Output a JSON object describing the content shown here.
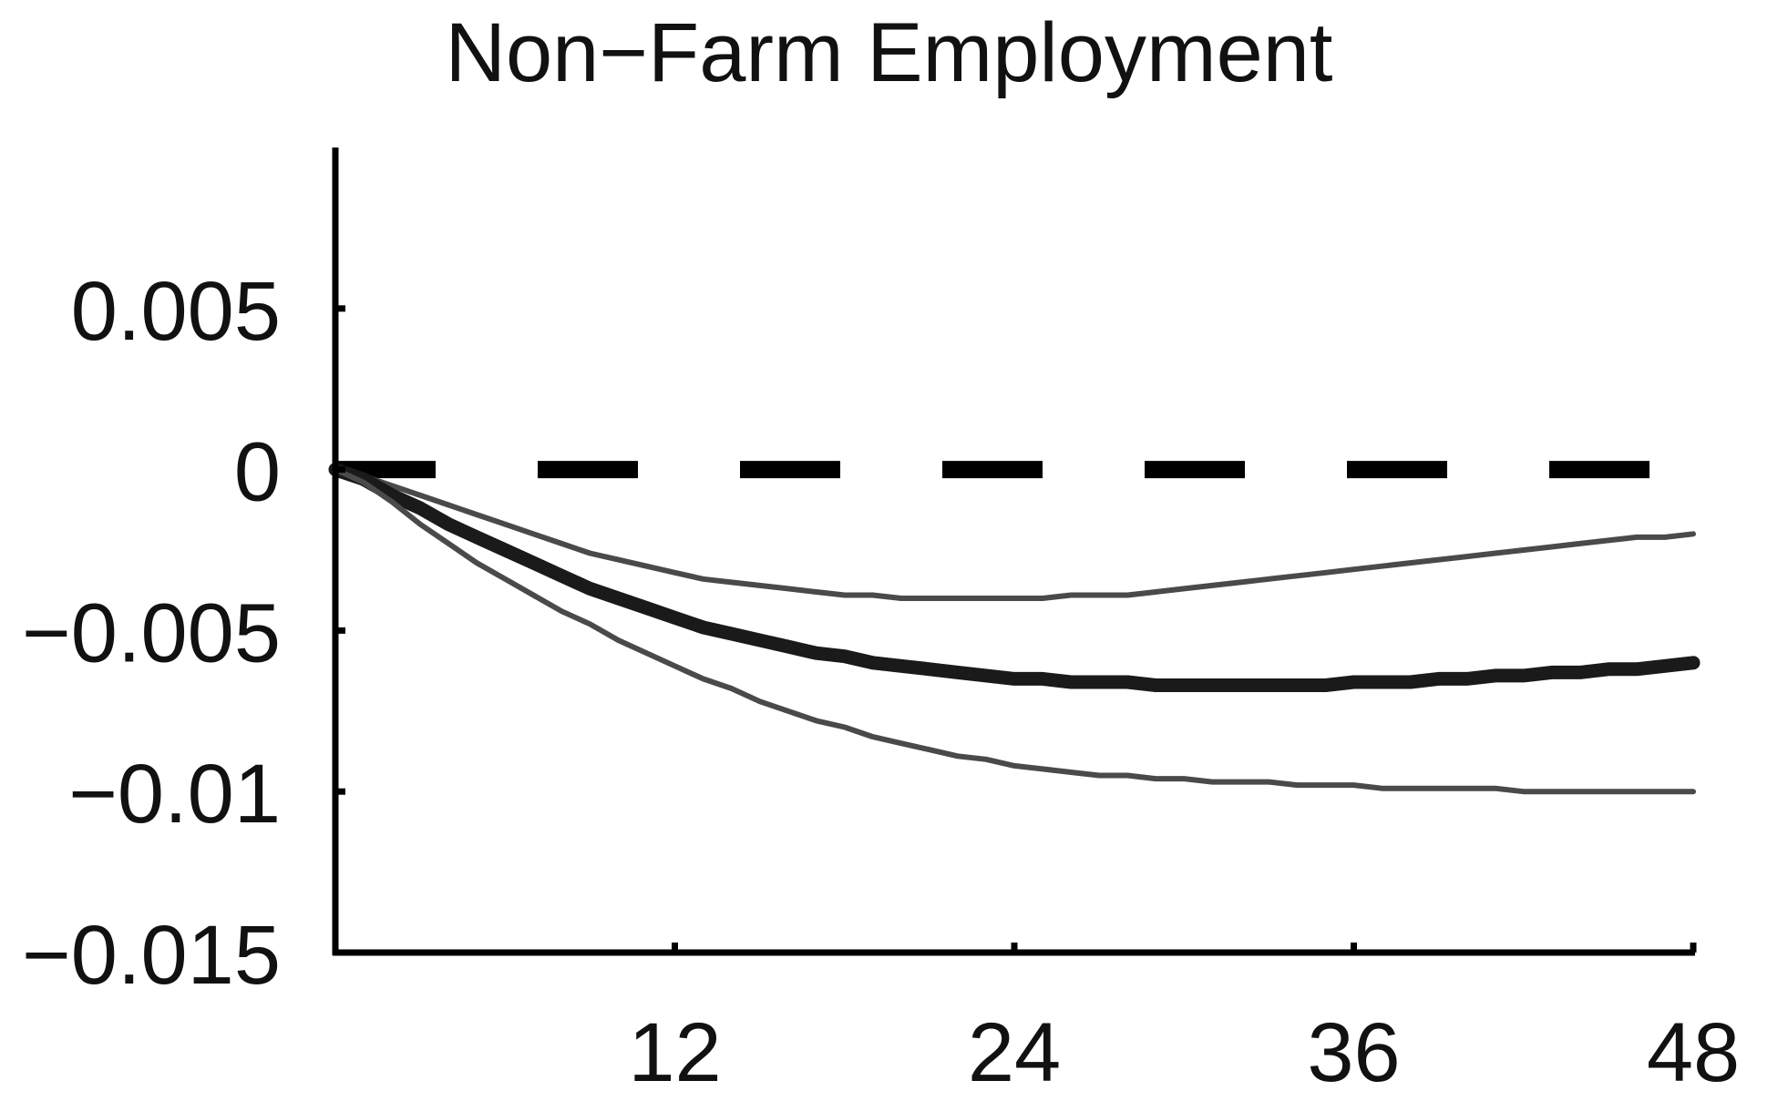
{
  "chart_data": {
    "type": "line",
    "title": "Non−Farm Employment",
    "xlabel": "",
    "ylabel": "",
    "xlim": [
      0,
      48
    ],
    "ylim": [
      -0.015,
      0.01
    ],
    "x_ticks": [
      12,
      24,
      36,
      48
    ],
    "x_tick_labels": [
      "12",
      "24",
      "36",
      "48"
    ],
    "y_ticks": [
      0.005,
      0,
      -0.005,
      -0.01,
      -0.015
    ],
    "y_tick_labels": [
      "0.005",
      "0",
      "−0.005",
      "−0.01",
      "−0.015"
    ],
    "grid": false,
    "legend": "none",
    "zero_line": {
      "style": "dashed",
      "value": 0,
      "color": "#000000"
    },
    "series": [
      {
        "role": "upper-band",
        "color": "#4a4a4a",
        "x": [
          0,
          1,
          2,
          3,
          4,
          5,
          6,
          7,
          8,
          9,
          10,
          11,
          12,
          13,
          14,
          15,
          16,
          17,
          18,
          19,
          20,
          21,
          22,
          23,
          24,
          25,
          26,
          27,
          28,
          29,
          30,
          31,
          32,
          33,
          34,
          35,
          36,
          37,
          38,
          39,
          40,
          41,
          42,
          43,
          44,
          45,
          46,
          47,
          48
        ],
        "values": [
          0,
          -0.0002,
          -0.0005,
          -0.0008,
          -0.0011,
          -0.0014,
          -0.0017,
          -0.002,
          -0.0023,
          -0.0026,
          -0.0028,
          -0.003,
          -0.0032,
          -0.0034,
          -0.0035,
          -0.0036,
          -0.0037,
          -0.0038,
          -0.0039,
          -0.0039,
          -0.004,
          -0.004,
          -0.004,
          -0.004,
          -0.004,
          -0.004,
          -0.0039,
          -0.0039,
          -0.0039,
          -0.0038,
          -0.0037,
          -0.0036,
          -0.0035,
          -0.0034,
          -0.0033,
          -0.0032,
          -0.0031,
          -0.003,
          -0.0029,
          -0.0028,
          -0.0027,
          -0.0026,
          -0.0025,
          -0.0024,
          -0.0023,
          -0.0022,
          -0.0021,
          -0.0021,
          -0.002
        ]
      },
      {
        "role": "median",
        "color": "#1a1a1a",
        "x": [
          0,
          1,
          2,
          3,
          4,
          5,
          6,
          7,
          8,
          9,
          10,
          11,
          12,
          13,
          14,
          15,
          16,
          17,
          18,
          19,
          20,
          21,
          22,
          23,
          24,
          25,
          26,
          27,
          28,
          29,
          30,
          31,
          32,
          33,
          34,
          35,
          36,
          37,
          38,
          39,
          40,
          41,
          42,
          43,
          44,
          45,
          46,
          47,
          48
        ],
        "values": [
          0,
          -0.0003,
          -0.0008,
          -0.0012,
          -0.0017,
          -0.0021,
          -0.0025,
          -0.0029,
          -0.0033,
          -0.0037,
          -0.004,
          -0.0043,
          -0.0046,
          -0.0049,
          -0.0051,
          -0.0053,
          -0.0055,
          -0.0057,
          -0.0058,
          -0.006,
          -0.0061,
          -0.0062,
          -0.0063,
          -0.0064,
          -0.0065,
          -0.0065,
          -0.0066,
          -0.0066,
          -0.0066,
          -0.0067,
          -0.0067,
          -0.0067,
          -0.0067,
          -0.0067,
          -0.0067,
          -0.0067,
          -0.0066,
          -0.0066,
          -0.0066,
          -0.0065,
          -0.0065,
          -0.0064,
          -0.0064,
          -0.0063,
          -0.0063,
          -0.0062,
          -0.0062,
          -0.0061,
          -0.006
        ]
      },
      {
        "role": "lower-band",
        "color": "#4a4a4a",
        "x": [
          0,
          1,
          2,
          3,
          4,
          5,
          6,
          7,
          8,
          9,
          10,
          11,
          12,
          13,
          14,
          15,
          16,
          17,
          18,
          19,
          20,
          21,
          22,
          23,
          24,
          25,
          26,
          27,
          28,
          29,
          30,
          31,
          32,
          33,
          34,
          35,
          36,
          37,
          38,
          39,
          40,
          41,
          42,
          43,
          44,
          45,
          46,
          47,
          48
        ],
        "values": [
          0,
          -0.0004,
          -0.001,
          -0.0017,
          -0.0023,
          -0.0029,
          -0.0034,
          -0.0039,
          -0.0044,
          -0.0048,
          -0.0053,
          -0.0057,
          -0.0061,
          -0.0065,
          -0.0068,
          -0.0072,
          -0.0075,
          -0.0078,
          -0.008,
          -0.0083,
          -0.0085,
          -0.0087,
          -0.0089,
          -0.009,
          -0.0092,
          -0.0093,
          -0.0094,
          -0.0095,
          -0.0095,
          -0.0096,
          -0.0096,
          -0.0097,
          -0.0097,
          -0.0097,
          -0.0098,
          -0.0098,
          -0.0098,
          -0.0099,
          -0.0099,
          -0.0099,
          -0.0099,
          -0.0099,
          -0.01,
          -0.01,
          -0.01,
          -0.01,
          -0.01,
          -0.01,
          -0.01
        ]
      }
    ]
  }
}
